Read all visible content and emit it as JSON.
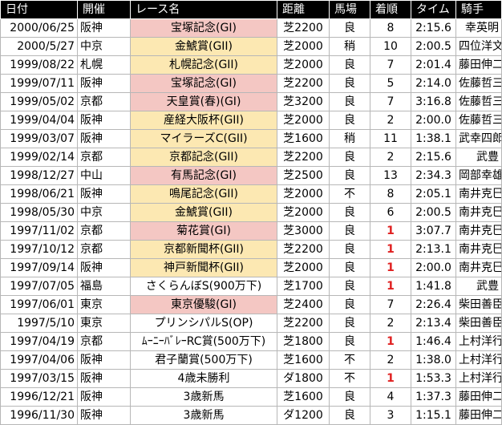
{
  "headers": [
    "日付",
    "開催",
    "レース名",
    "距離",
    "馬場",
    "着順",
    "タイム",
    "騎手"
  ],
  "rows": [
    {
      "date": "2000/06/25",
      "venue": "阪神",
      "race": "宝塚記念(GI)",
      "grade": "g1",
      "distance": "芝2200",
      "track": "良",
      "position": "8",
      "time": "2:15.6",
      "jockey": "幸英明"
    },
    {
      "date": "2000/5/27",
      "venue": "中京",
      "race": "金鯱賞(GII)",
      "grade": "g2",
      "distance": "芝2000",
      "track": "稍",
      "position": "10",
      "time": "2:00.5",
      "jockey": "四位洋文"
    },
    {
      "date": "1999/08/22",
      "venue": "札幌",
      "race": "札幌記念(GII)",
      "grade": "g2",
      "distance": "芝2000",
      "track": "良",
      "position": "7",
      "time": "2:01.4",
      "jockey": "藤田伸二"
    },
    {
      "date": "1999/07/11",
      "venue": "阪神",
      "race": "宝塚記念(GI)",
      "grade": "g1",
      "distance": "芝2200",
      "track": "良",
      "position": "5",
      "time": "2:14.0",
      "jockey": "佐藤哲三"
    },
    {
      "date": "1999/05/02",
      "venue": "京都",
      "race": "天皇賞(春)(GI)",
      "grade": "g1",
      "distance": "芝3200",
      "track": "良",
      "position": "7",
      "time": "3:16.8",
      "jockey": "佐藤哲三"
    },
    {
      "date": "1999/04/04",
      "venue": "阪神",
      "race": "産経大阪杯(GII)",
      "grade": "g2",
      "distance": "芝2000",
      "track": "良",
      "position": "2",
      "time": "2:00.0",
      "jockey": "佐藤哲三"
    },
    {
      "date": "1999/03/07",
      "venue": "阪神",
      "race": "マイラーズC(GII)",
      "grade": "g2",
      "distance": "芝1600",
      "track": "稍",
      "position": "11",
      "time": "1:38.1",
      "jockey": "武幸四郎"
    },
    {
      "date": "1999/02/14",
      "venue": "京都",
      "race": "京都記念(GII)",
      "grade": "g2",
      "distance": "芝2200",
      "track": "良",
      "position": "2",
      "time": "2:15.6",
      "jockey": "武豊"
    },
    {
      "date": "1998/12/27",
      "venue": "中山",
      "race": "有馬記念(GI)",
      "grade": "g1",
      "distance": "芝2500",
      "track": "良",
      "position": "13",
      "time": "2:34.3",
      "jockey": "岡部幸雄"
    },
    {
      "date": "1998/06/21",
      "venue": "阪神",
      "race": "鳴尾記念(GII)",
      "grade": "g2",
      "distance": "芝2000",
      "track": "不",
      "position": "8",
      "time": "2:05.1",
      "jockey": "南井克巳"
    },
    {
      "date": "1998/05/30",
      "venue": "中京",
      "race": "金鯱賞(GII)",
      "grade": "g2",
      "distance": "芝2000",
      "track": "良",
      "position": "6",
      "time": "2:00.5",
      "jockey": "南井克巳"
    },
    {
      "date": "1997/11/02",
      "venue": "京都",
      "race": "菊花賞(GI)",
      "grade": "g1",
      "distance": "芝3000",
      "track": "良",
      "position": "1",
      "time": "3:07.7",
      "jockey": "南井克巳"
    },
    {
      "date": "1997/10/12",
      "venue": "京都",
      "race": "京都新聞杯(GII)",
      "grade": "g2",
      "distance": "芝2200",
      "track": "良",
      "position": "1",
      "time": "2:13.1",
      "jockey": "南井克巳"
    },
    {
      "date": "1997/09/14",
      "venue": "阪神",
      "race": "神戸新聞杯(GII)",
      "grade": "g2",
      "distance": "芝2000",
      "track": "良",
      "position": "1",
      "time": "2:00.0",
      "jockey": "南井克巳"
    },
    {
      "date": "1997/07/05",
      "venue": "福島",
      "race": "さくらんぼS(900万下)",
      "grade": "",
      "distance": "芝1700",
      "track": "良",
      "position": "1",
      "time": "1:41.8",
      "jockey": "武豊"
    },
    {
      "date": "1997/06/01",
      "venue": "東京",
      "race": "東京優駿(GI)",
      "grade": "g1",
      "distance": "芝2400",
      "track": "良",
      "position": "7",
      "time": "2:26.4",
      "jockey": "柴田善臣"
    },
    {
      "date": "1997/5/10",
      "venue": "東京",
      "race": "プリンシパルS(OP)",
      "grade": "",
      "distance": "芝2200",
      "track": "良",
      "position": "2",
      "time": "2:13.4",
      "jockey": "柴田善臣"
    },
    {
      "date": "1997/04/19",
      "venue": "京都",
      "race": "ﾑｰﾆｰﾊﾞﾚｰRC賞(500万下)",
      "grade": "",
      "distance": "芝1800",
      "track": "良",
      "position": "1",
      "time": "1:46.4",
      "jockey": "上村洋行"
    },
    {
      "date": "1997/04/06",
      "venue": "阪神",
      "race": "君子蘭賞(500万下)",
      "grade": "",
      "distance": "芝1600",
      "track": "不",
      "position": "2",
      "time": "1:38.0",
      "jockey": "上村洋行"
    },
    {
      "date": "1997/03/15",
      "venue": "阪神",
      "race": "4歳未勝利",
      "grade": "",
      "distance": "ダ1800",
      "track": "不",
      "position": "1",
      "time": "1:53.3",
      "jockey": "上村洋行"
    },
    {
      "date": "1996/12/21",
      "venue": "阪神",
      "race": "3歳新馬",
      "grade": "",
      "distance": "芝1600",
      "track": "良",
      "position": "4",
      "time": "1:37.3",
      "jockey": "藤田伸二"
    },
    {
      "date": "1996/11/30",
      "venue": "阪神",
      "race": "3歳新馬",
      "grade": "",
      "distance": "ダ1200",
      "track": "良",
      "position": "3",
      "time": "1:15.1",
      "jockey": "藤田伸二"
    }
  ],
  "colors": {
    "header_bg": "#000000",
    "g1_cell": "#f4c7c3",
    "g2_cell": "#fce8b2",
    "win_text": "#e02020"
  }
}
